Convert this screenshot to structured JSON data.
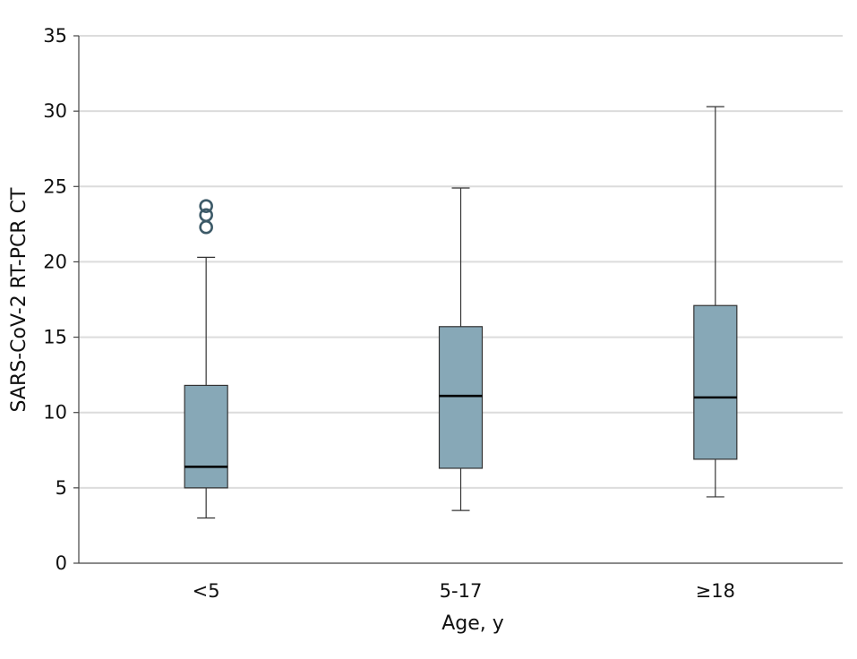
{
  "chart_data": {
    "type": "box",
    "xlabel": "Age, y",
    "ylabel": "SARS-CoV-2 RT-PCR CT",
    "ylim": [
      0,
      35
    ],
    "yticks": [
      0,
      5,
      10,
      15,
      20,
      25,
      30,
      35
    ],
    "grid": "horizontal",
    "categories": [
      "<5",
      "5-17",
      "≥18"
    ],
    "boxes": [
      {
        "category": "<5",
        "whisker_low": 3.0,
        "q1": 5.0,
        "median": 6.4,
        "q3": 11.8,
        "whisker_high": 20.3,
        "outliers": [
          22.3,
          23.1,
          23.7
        ]
      },
      {
        "category": "5-17",
        "whisker_low": 3.5,
        "q1": 6.3,
        "median": 11.1,
        "q3": 15.7,
        "whisker_high": 24.9,
        "outliers": []
      },
      {
        "category": "≥18",
        "whisker_low": 4.4,
        "q1": 6.9,
        "median": 11.0,
        "q3": 17.1,
        "whisker_high": 30.3,
        "outliers": []
      }
    ],
    "colors": {
      "box_fill": "#87a8b7",
      "box_stroke": "#333333",
      "median": "#000000",
      "outlier_stroke": "#3d5a68",
      "grid": "#dcdcdc",
      "axis": "#444444"
    }
  }
}
